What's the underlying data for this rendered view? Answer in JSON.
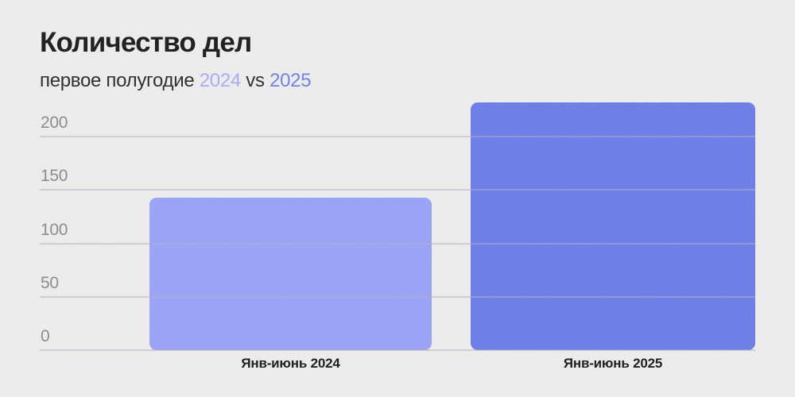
{
  "header": {
    "title": "Количество дел",
    "subtitle_prefix": "первое полугодие ",
    "subtitle_year_a": "2024",
    "subtitle_vs": " vs ",
    "subtitle_year_b": "2025"
  },
  "colors": {
    "background": "#eeedee",
    "title_text": "#1e1e1e",
    "subtitle_text": "#2e2e2e",
    "subtitle_year_2024": "#a7aff4",
    "subtitle_year_2025": "#7082ea",
    "bar_2024": "#9aa3f8",
    "bar_2025": "#6c7fe8",
    "gridline": "rgba(176,178,192,0.5)",
    "ytick_text": "#8c8c8c",
    "xlabel_text": "#1c1c1c"
  },
  "chart_data": {
    "type": "bar",
    "title": "Количество дел",
    "subtitle": "первое полугодие 2024 vs 2025",
    "categories": [
      "Янв-июнь 2024",
      "Янв-июнь 2025"
    ],
    "values": [
      143,
      232
    ],
    "series_colors": [
      "#9aa3f8",
      "#6c7fe8"
    ],
    "xlabel": "",
    "ylabel": "",
    "ylim": [
      0,
      200
    ],
    "yticks": [
      0,
      50,
      100,
      150,
      200
    ],
    "grid": true,
    "gridlines_over_bars": true,
    "legend": false
  }
}
